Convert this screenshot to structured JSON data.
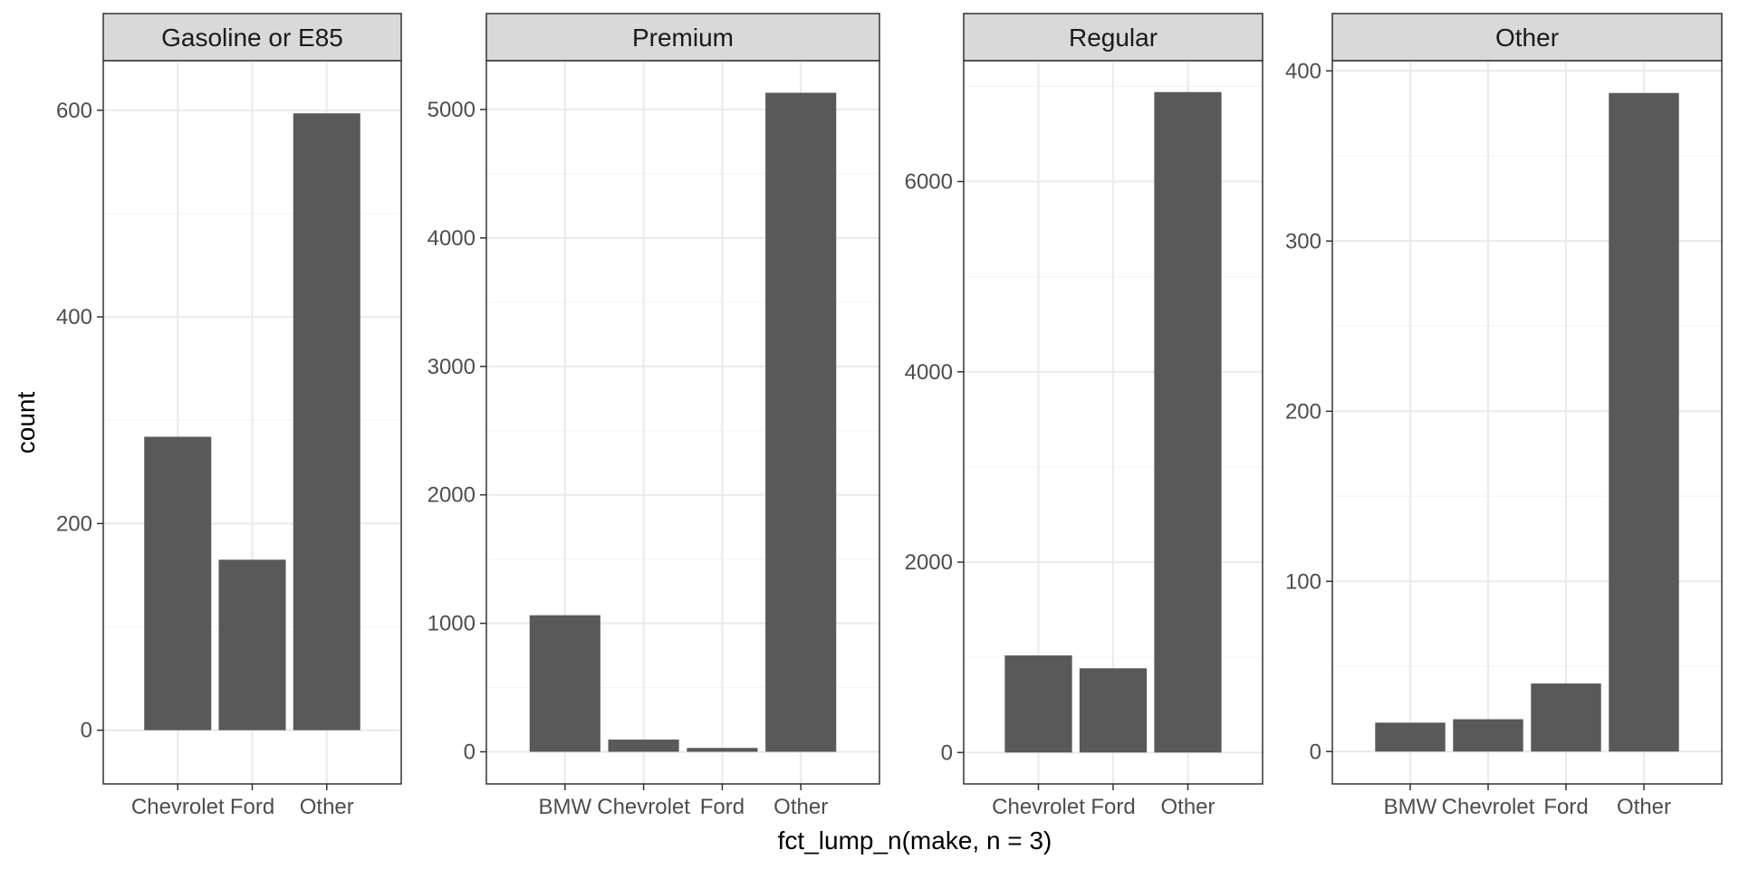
{
  "chart_data": {
    "type": "bar",
    "xlabel": "fct_lump_n(make, n = 3)",
    "ylabel": "count",
    "grid": true,
    "colors": {
      "bar": "#595959",
      "strip_fill": "#d9d9d9",
      "panel_border": "#333333",
      "grid_major": "#ebebeb",
      "grid_minor": "#f5f5f5"
    },
    "panels": [
      {
        "title": "Gasoline or E85",
        "categories": [
          "Chevrolet",
          "Ford",
          "Other"
        ],
        "values": [
          284,
          165,
          597
        ],
        "ylim": [
          -52,
          648
        ],
        "yticks": [
          0,
          200,
          400,
          600
        ]
      },
      {
        "title": "Premium",
        "categories": [
          "BMW",
          "Chevrolet",
          "Ford",
          "Other"
        ],
        "values": [
          1063,
          95,
          30,
          5130
        ],
        "ylim": [
          -250,
          5380
        ],
        "yticks": [
          0,
          1000,
          2000,
          3000,
          4000,
          5000
        ]
      },
      {
        "title": "Regular",
        "categories": [
          "Chevrolet",
          "Ford",
          "Other"
        ],
        "values": [
          1020,
          885,
          6940
        ],
        "ylim": [
          -330,
          7270
        ],
        "yticks": [
          0,
          2000,
          4000,
          6000
        ]
      },
      {
        "title": "Other",
        "categories": [
          "BMW",
          "Chevrolet",
          "Ford",
          "Other"
        ],
        "values": [
          17,
          19,
          40,
          387
        ],
        "ylim": [
          -19,
          406
        ],
        "yticks": [
          0,
          100,
          200,
          300,
          400
        ]
      }
    ]
  }
}
